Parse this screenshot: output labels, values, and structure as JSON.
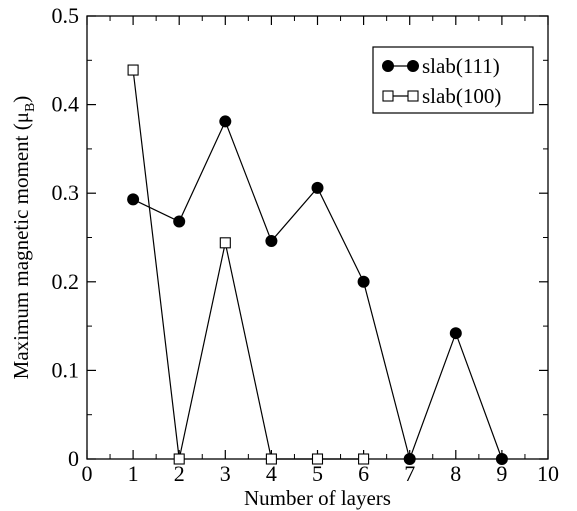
{
  "chart_data": {
    "type": "line",
    "xlabel": "Number of layers",
    "ylabel": "Maximum magnetic moment",
    "ylabel_unit": "(μ",
    "ylabel_unit_sub": "B",
    "ylabel_unit_close": ")",
    "xlim": [
      0,
      10
    ],
    "ylim": [
      0,
      0.5
    ],
    "xticks": [
      "0",
      "1",
      "2",
      "3",
      "4",
      "5",
      "6",
      "7",
      "8",
      "9",
      "10"
    ],
    "yticks": [
      "0",
      "0.1",
      "0.2",
      "0.3",
      "0.4",
      "0.5"
    ],
    "grid": false,
    "legend_position": "top-right",
    "series": [
      {
        "name": "slab(111)",
        "marker": "filled-circle",
        "color": "#000000",
        "points": [
          {
            "x": 1,
            "y": 0.293
          },
          {
            "x": 2,
            "y": 0.268
          },
          {
            "x": 3,
            "y": 0.381
          },
          {
            "x": 4,
            "y": 0.246
          },
          {
            "x": 5,
            "y": 0.306
          },
          {
            "x": 6,
            "y": 0.2
          },
          {
            "x": 7,
            "y": 0.0
          },
          {
            "x": 8,
            "y": 0.142
          },
          {
            "x": 9,
            "y": 0.0
          }
        ]
      },
      {
        "name": "slab(100)",
        "marker": "open-square",
        "color": "#000000",
        "points": [
          {
            "x": 1,
            "y": 0.439
          },
          {
            "x": 2,
            "y": 0.0
          },
          {
            "x": 3,
            "y": 0.244
          },
          {
            "x": 4,
            "y": 0.0
          },
          {
            "x": 5,
            "y": 0.0
          },
          {
            "x": 6,
            "y": 0.0
          }
        ]
      }
    ]
  }
}
